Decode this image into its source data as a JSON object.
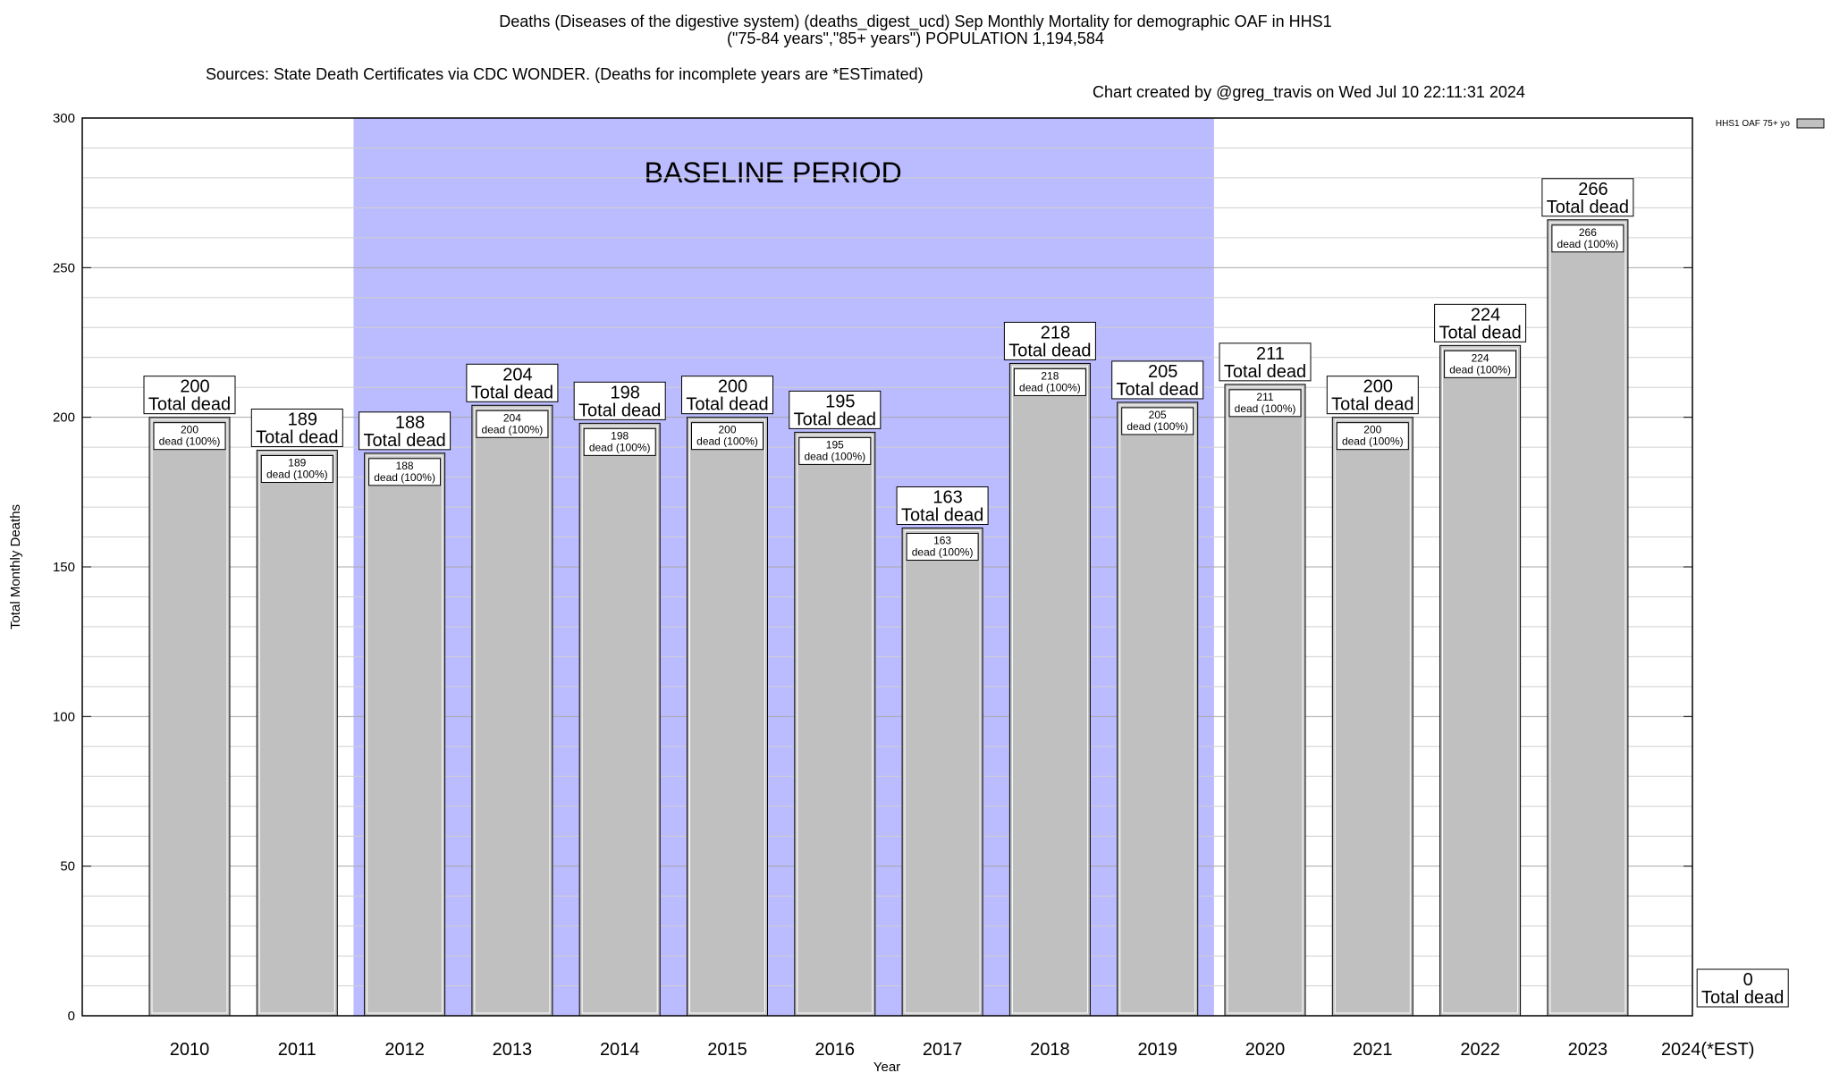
{
  "title": {
    "line1": "Deaths (Diseases of the digestive system) (deaths_digest_ucd) Sep Monthly Mortality for demographic OAF in HHS1",
    "line2": "(\"75-84 years\",\"85+ years\") POPULATION 1,194,584",
    "sources": "Sources: State Death Certificates via CDC WONDER. (Deaths for incomplete years are *ESTimated)",
    "credit": "Chart created by @greg_travis on Wed Jul 10 22:11:31 2024"
  },
  "chart_data": {
    "type": "bar",
    "xlabel": "Year",
    "ylabel": "Total Monthly Deaths",
    "ylim": [
      0,
      300
    ],
    "yticks": [
      0,
      50,
      100,
      150,
      200,
      250,
      300
    ],
    "grid": true,
    "categories": [
      "2010",
      "2011",
      "2012",
      "2013",
      "2014",
      "2015",
      "2016",
      "2017",
      "2018",
      "2019",
      "2020",
      "2021",
      "2022",
      "2023",
      "2024(*EST)"
    ],
    "series": [
      {
        "name": "HHS1 OAF 75+ yo",
        "values": [
          200,
          189,
          188,
          204,
          198,
          200,
          195,
          163,
          218,
          205,
          211,
          200,
          224,
          266,
          0
        ]
      }
    ],
    "bar_label_top": "Total dead",
    "bar_label_inner": "dead (100%)",
    "inner_label_shown": [
      true,
      true,
      true,
      true,
      true,
      true,
      true,
      true,
      true,
      true,
      true,
      true,
      true,
      true,
      false
    ],
    "baseline": {
      "label": "BASELINE PERIOD",
      "from": "2012",
      "to": "2019",
      "color": "#bbbbff"
    },
    "bar_color": "#c0c0c0",
    "legend_position": "top-right"
  }
}
